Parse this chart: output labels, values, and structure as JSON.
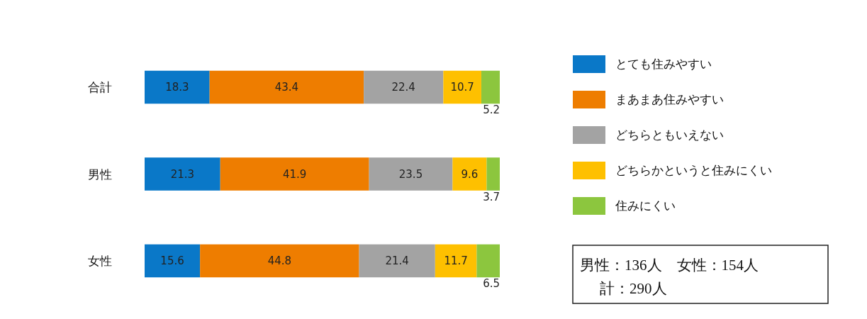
{
  "chart_data": {
    "type": "bar",
    "orientation": "horizontal",
    "stacked": true,
    "data_labels": true,
    "legend": "right",
    "categories": [
      "合計",
      "男性",
      "女性"
    ],
    "series": [
      {
        "name": "とても住みやすい",
        "color": "#0a78c8",
        "values": [
          18.3,
          21.3,
          15.6
        ]
      },
      {
        "name": "まあまあ住みやすい",
        "color": "#ee7d00",
        "values": [
          43.4,
          41.9,
          44.8
        ]
      },
      {
        "name": "どちらともいえない",
        "color": "#a3a3a3",
        "values": [
          22.4,
          23.5,
          21.4
        ]
      },
      {
        "name": "どちらかというと住みにくい",
        "color": "#fec000",
        "values": [
          10.7,
          9.6,
          11.7
        ]
      },
      {
        "name": "住みにくい",
        "color": "#8cc63e",
        "values": [
          5.2,
          3.7,
          6.5
        ]
      }
    ],
    "annotations": [
      "男性：136人　女性：154人",
      "計：290人"
    ]
  }
}
